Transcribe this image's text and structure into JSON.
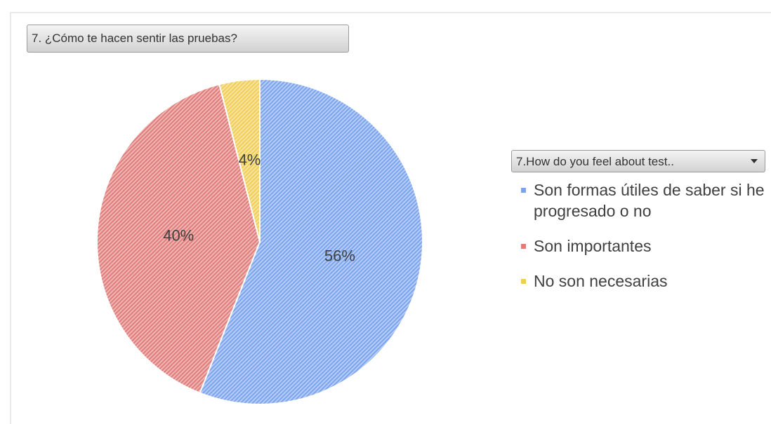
{
  "chart_data": {
    "type": "pie",
    "title": "7. ¿Cómo te hacen sentir las pruebas?",
    "legend_title": "7.How do you feel about test..",
    "categories": [
      "Son formas útiles de saber si he progresado o no",
      "Son importantes",
      "No son necesarias"
    ],
    "values": [
      56,
      40,
      4
    ],
    "value_labels": [
      "56%",
      "40%",
      "4%"
    ],
    "colors": [
      "#7ba4ee",
      "#e07c79",
      "#f0cd55"
    ],
    "legend": "right"
  }
}
